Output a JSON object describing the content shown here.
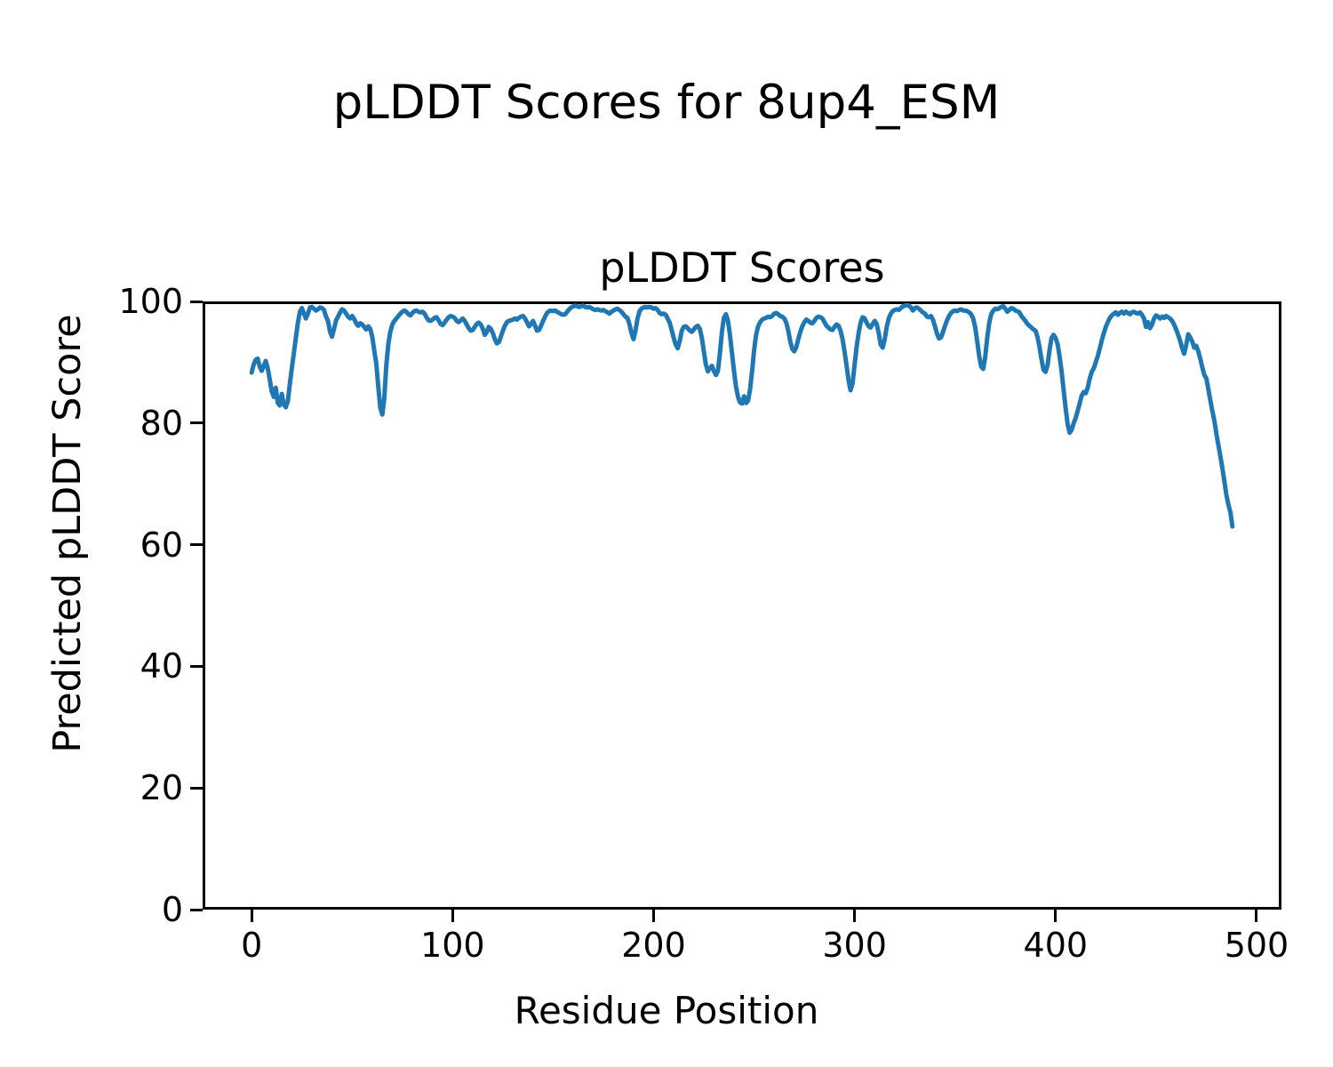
{
  "figure": {
    "suptitle": "pLDDT Scores for 8up4_ESM",
    "background_color": "#ffffff",
    "text_color": "#000000"
  },
  "axes": {
    "title": "pLDDT Scores",
    "xlabel": "Residue Position",
    "ylabel": "Predicted pLDDT Score"
  },
  "chart_data": {
    "type": "line",
    "title": "pLDDT Scores",
    "xlabel": "Residue Position",
    "ylabel": "Predicted pLDDT Score",
    "xlim": [
      -24.4,
      512.4
    ],
    "ylim": [
      0,
      100
    ],
    "xticks": [
      0,
      100,
      200,
      300,
      400,
      500
    ],
    "yticks": [
      0,
      20,
      40,
      60,
      80,
      100
    ],
    "grid": false,
    "legend": "none",
    "line_color": "#1f77b4",
    "line_width": 5,
    "series": [
      {
        "name": "pLDDT",
        "color": "#1f77b4",
        "x_start": 0,
        "x_step": 1,
        "values": [
          88.3,
          89.6,
          90.4,
          90.6,
          89.3,
          88.6,
          89.4,
          90.2,
          89.0,
          87.2,
          85.2,
          84.3,
          85.8,
          83.3,
          82.9,
          84.8,
          83.1,
          82.6,
          83.6,
          86.5,
          89.0,
          91.5,
          94.0,
          96.5,
          98.3,
          98.9,
          98.0,
          97.2,
          98.0,
          99.0,
          99.1,
          98.8,
          98.5,
          98.7,
          99.0,
          98.9,
          98.6,
          97.5,
          96.8,
          95.0,
          94.2,
          95.5,
          96.9,
          97.5,
          98.2,
          98.7,
          98.5,
          98.0,
          97.5,
          97.2,
          97.6,
          97.1,
          96.4,
          96.0,
          96.4,
          96.2,
          95.8,
          95.4,
          95.9,
          95.5,
          94.2,
          92.0,
          89.8,
          86.0,
          82.5,
          81.4,
          84.0,
          89.5,
          93.0,
          95.0,
          96.2,
          96.8,
          97.2,
          97.6,
          98.0,
          98.3,
          98.5,
          98.3,
          97.9,
          97.7,
          98.1,
          98.4,
          98.5,
          98.3,
          98.2,
          98.3,
          98.0,
          97.4,
          96.9,
          96.8,
          97.0,
          97.3,
          97.4,
          96.9,
          96.3,
          96.1,
          96.5,
          97.0,
          97.4,
          97.6,
          97.5,
          97.3,
          96.8,
          96.6,
          96.9,
          97.2,
          96.8,
          96.2,
          95.6,
          95.2,
          95.3,
          95.8,
          96.3,
          96.5,
          96.2,
          95.5,
          94.5,
          95.0,
          95.8,
          95.5,
          94.8,
          93.8,
          93.1,
          93.3,
          94.2,
          95.2,
          96.0,
          96.6,
          96.8,
          96.9,
          97.0,
          97.2,
          97.0,
          97.3,
          97.5,
          97.6,
          97.2,
          96.6,
          95.9,
          96.3,
          96.8,
          96.0,
          95.2,
          95.3,
          96.0,
          96.8,
          97.5,
          98.1,
          98.4,
          98.5,
          98.4,
          98.5,
          98.3,
          98.1,
          97.9,
          97.8,
          97.9,
          98.3,
          98.7,
          99.0,
          99.2,
          99.3,
          99.2,
          99.1,
          99.2,
          99.3,
          99.1,
          99.0,
          99.1,
          98.9,
          98.7,
          98.6,
          98.7,
          98.6,
          98.5,
          98.6,
          98.4,
          98.2,
          98.0,
          98.3,
          98.5,
          98.7,
          98.8,
          98.6,
          98.3,
          97.9,
          97.5,
          97.3,
          96.2,
          94.8,
          93.8,
          95.2,
          97.2,
          98.4,
          98.8,
          99.0,
          99.1,
          99.0,
          99.1,
          99.0,
          98.8,
          98.9,
          98.6,
          98.1,
          97.9,
          98.0,
          97.8,
          97.2,
          96.5,
          95.3,
          94.0,
          92.9,
          92.3,
          93.5,
          95.2,
          95.8,
          95.9,
          95.6,
          95.2,
          95.0,
          95.4,
          95.8,
          96.0,
          95.5,
          94.0,
          91.8,
          89.6,
          88.5,
          89.0,
          89.4,
          88.6,
          87.9,
          88.6,
          91.5,
          95.0,
          97.3,
          97.9,
          96.8,
          94.5,
          91.5,
          88.5,
          86.0,
          84.3,
          83.4,
          83.2,
          84.4,
          83.3,
          83.7,
          85.5,
          88.5,
          92.0,
          94.5,
          95.9,
          96.6,
          97.0,
          97.2,
          97.3,
          97.5,
          97.4,
          97.6,
          98.0,
          98.1,
          97.9,
          97.6,
          97.5,
          97.2,
          96.5,
          95.2,
          93.4,
          92.2,
          91.8,
          92.5,
          93.8,
          95.0,
          95.9,
          96.6,
          97.0,
          96.8,
          96.5,
          96.4,
          96.8,
          97.3,
          97.5,
          97.4,
          97.2,
          96.6,
          96.0,
          95.7,
          95.4,
          95.3,
          95.8,
          96.2,
          96.0,
          95.2,
          93.8,
          91.8,
          89.5,
          87.0,
          85.4,
          86.5,
          89.5,
          92.5,
          94.8,
          96.5,
          97.4,
          97.2,
          96.5,
          95.9,
          95.7,
          96.3,
          96.8,
          96.3,
          94.8,
          92.9,
          92.4,
          93.8,
          95.8,
          97.2,
          98.0,
          98.4,
          98.6,
          98.7,
          98.6,
          98.9,
          99.2,
          99.3,
          99.4,
          99.3,
          99.0,
          98.5,
          98.9,
          99.0,
          98.8,
          98.5,
          98.2,
          98.0,
          97.5,
          97.4,
          97.6,
          97.0,
          95.9,
          94.7,
          93.9,
          94.1,
          95.0,
          96.0,
          96.9,
          97.6,
          98.1,
          98.4,
          98.5,
          98.4,
          98.6,
          98.7,
          98.5,
          98.5,
          98.4,
          98.2,
          97.9,
          97.2,
          95.8,
          93.5,
          91.0,
          89.3,
          88.9,
          90.8,
          94.0,
          96.5,
          97.9,
          98.5,
          98.8,
          98.7,
          98.9,
          99.1,
          99.2,
          98.8,
          98.3,
          98.6,
          98.9,
          98.8,
          98.5,
          98.4,
          98.2,
          97.6,
          97.2,
          96.8,
          96.3,
          96.0,
          95.7,
          95.4,
          95.2,
          94.2,
          92.5,
          90.5,
          88.8,
          88.4,
          89.5,
          92.0,
          94.0,
          94.5,
          94.0,
          93.0,
          91.0,
          88.5,
          85.5,
          82.5,
          79.8,
          78.4,
          78.9,
          80.0,
          80.8,
          82.0,
          83.2,
          84.5,
          85.1,
          84.9,
          85.8,
          87.3,
          88.4,
          89.0,
          90.0,
          91.0,
          92.3,
          93.6,
          94.8,
          95.8,
          96.6,
          97.3,
          97.7,
          98.0,
          98.2,
          97.8,
          98.1,
          98.3,
          98.0,
          98.3,
          98.1,
          97.9,
          98.2,
          98.3,
          98.1,
          98.0,
          98.2,
          97.8,
          97.2,
          95.8,
          96.6,
          95.6,
          96.2,
          97.2,
          97.7,
          97.5,
          97.2,
          97.5,
          97.3,
          97.6,
          97.4,
          97.2,
          96.8,
          96.2,
          95.4,
          94.5,
          93.5,
          92.3,
          91.4,
          92.8,
          94.6,
          94.1,
          93.4,
          92.4,
          92.7,
          91.8,
          90.6,
          89.2,
          87.9,
          87.4,
          85.6,
          83.8,
          82.0,
          80.4,
          78.3,
          76.4,
          74.6,
          72.6,
          70.4,
          68.2,
          66.6,
          65.3,
          63.0
        ]
      }
    ]
  }
}
